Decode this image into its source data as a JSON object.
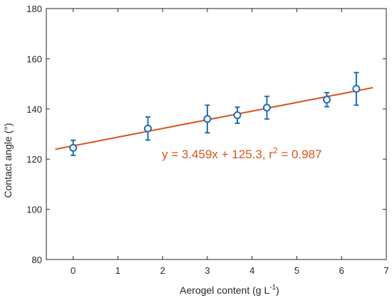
{
  "chart_data": {
    "type": "scatter",
    "title": "",
    "xlabel": "Aerogel content (g L",
    "xlabel_unit_superscript": "-1",
    "xlabel_suffix": ")",
    "ylabel": "Contact angle (°)",
    "xlim": [
      -0.6,
      7
    ],
    "ylim": [
      80,
      180
    ],
    "xticks": [
      0,
      1,
      2,
      3,
      4,
      5,
      6,
      7
    ],
    "yticks": [
      80,
      100,
      120,
      140,
      160,
      180
    ],
    "grid": false,
    "legend": "none",
    "series": [
      {
        "marker": "open-circle",
        "color": "#1f6fb2",
        "x": [
          0,
          1.67,
          3.0,
          3.67,
          4.33,
          5.67,
          6.33
        ],
        "y": [
          124.5,
          132.2,
          136.0,
          137.5,
          140.5,
          143.7,
          148.0
        ],
        "err": [
          3.0,
          4.6,
          5.5,
          3.2,
          4.5,
          2.8,
          6.5
        ]
      }
    ],
    "fit": {
      "color": "#d9541e",
      "slope": 3.459,
      "intercept": 125.3,
      "x_range": [
        -0.4,
        6.7
      ],
      "equation": "y = 3.459x + 125.3, r",
      "r_superscript": "2",
      "r_value_text": " = 0.987"
    }
  }
}
